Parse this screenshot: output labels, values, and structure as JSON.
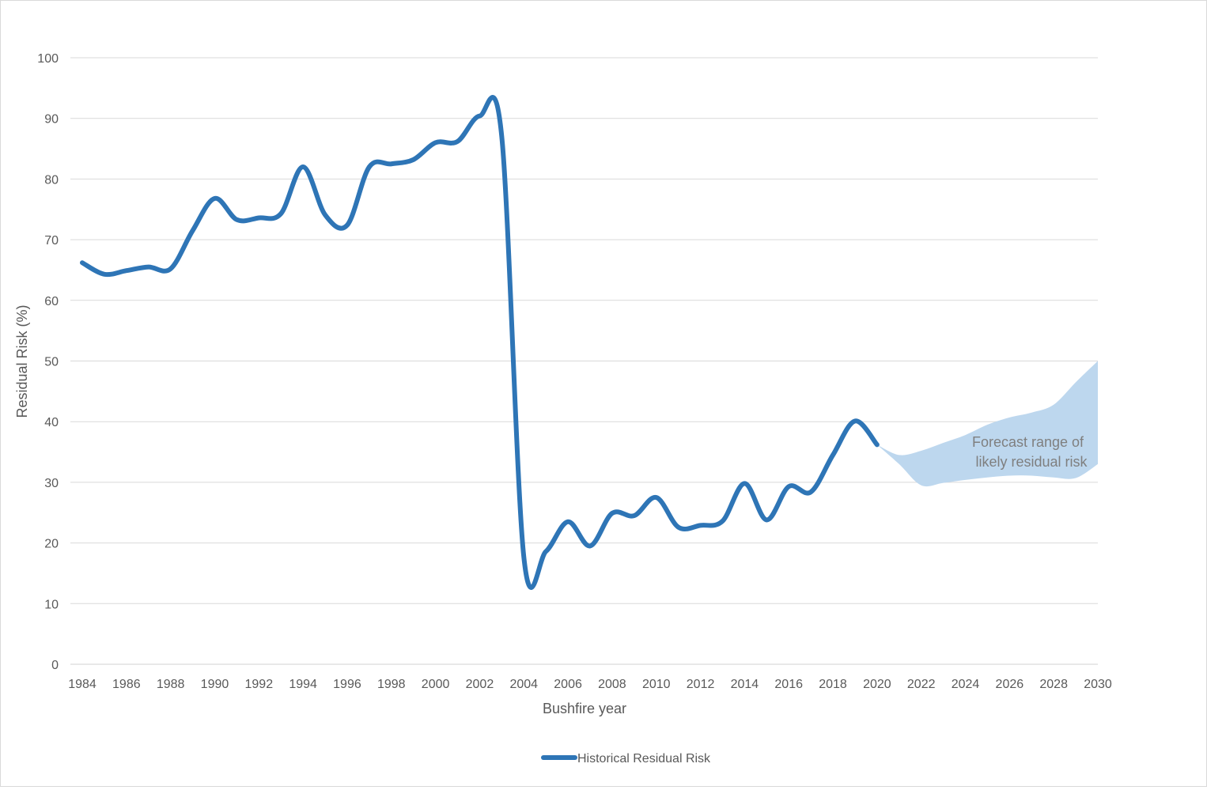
{
  "chart_data": {
    "type": "line",
    "title": "",
    "xlabel": "Bushfire year",
    "ylabel": "Residual Risk (%)",
    "xlim": [
      1984,
      2030
    ],
    "ylim": [
      0,
      100
    ],
    "y_ticks": [
      0,
      10,
      20,
      30,
      40,
      50,
      60,
      70,
      80,
      90,
      100
    ],
    "x_ticks": [
      1984,
      1986,
      1988,
      1990,
      1992,
      1994,
      1996,
      1998,
      2000,
      2002,
      2004,
      2006,
      2008,
      2010,
      2012,
      2014,
      2016,
      2018,
      2020,
      2022,
      2024,
      2026,
      2028,
      2030
    ],
    "grid": "horizontal",
    "legend_position": "bottom",
    "series": [
      {
        "name": "Historical Residual Risk",
        "color": "#2e75b6",
        "x": [
          1984,
          1985,
          1986,
          1987,
          1988,
          1989,
          1990,
          1991,
          1992,
          1993,
          1994,
          1995,
          1996,
          1997,
          1998,
          1999,
          2000,
          2001,
          2002,
          2003,
          2004,
          2005,
          2006,
          2007,
          2008,
          2009,
          2010,
          2011,
          2012,
          2013,
          2014,
          2015,
          2016,
          2017,
          2018,
          2019,
          2020
        ],
        "y": [
          66.2,
          64.3,
          64.9,
          65.5,
          65.2,
          71.5,
          76.8,
          73.3,
          73.6,
          74.3,
          82.0,
          74.1,
          72.4,
          82.0,
          82.5,
          83.2,
          86.0,
          86.2,
          90.4,
          87.0,
          17.7,
          18.6,
          23.5,
          19.5,
          24.9,
          24.5,
          27.5,
          22.6,
          22.9,
          23.6,
          29.8,
          23.8,
          29.3,
          28.4,
          34.5,
          40.1,
          36.2
        ]
      }
    ],
    "forecast_band": {
      "label": "Forecast range of likely residual risk",
      "color": "#bdd7ee",
      "x": [
        2020,
        2021,
        2022,
        2023,
        2024,
        2025,
        2026,
        2027,
        2028,
        2029,
        2030
      ],
      "upper": [
        36.2,
        34.5,
        35.2,
        36.5,
        37.8,
        39.5,
        40.7,
        41.5,
        42.8,
        46.5,
        50.0
      ],
      "lower": [
        36.2,
        33.0,
        29.5,
        29.9,
        30.4,
        30.8,
        31.1,
        31.1,
        30.8,
        30.7,
        33.0
      ]
    }
  }
}
